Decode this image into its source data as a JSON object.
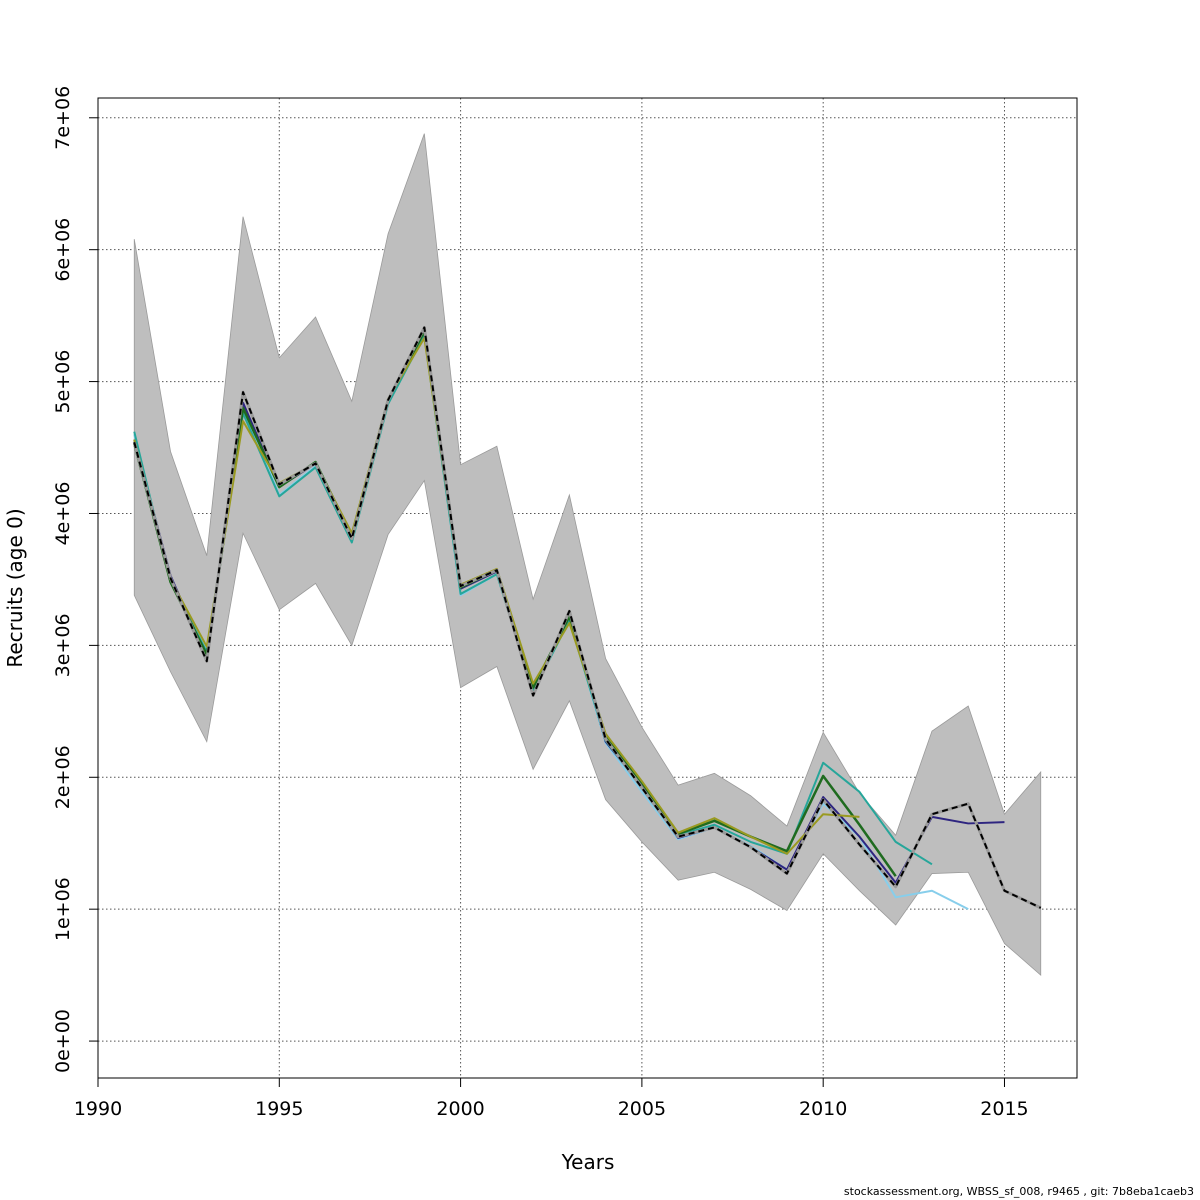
{
  "chart_data": {
    "type": "line",
    "title": "",
    "xlabel": "Years",
    "ylabel": "Recruits (age 0)",
    "xlim": [
      1990,
      2017
    ],
    "ylim": [
      -280000,
      7150000
    ],
    "x_ticks": [
      1990,
      1995,
      2000,
      2005,
      2010,
      2015
    ],
    "x_tick_labels": [
      "1990",
      "1995",
      "2000",
      "2005",
      "2010",
      "2015"
    ],
    "y_ticks": [
      0,
      1000000,
      2000000,
      3000000,
      4000000,
      5000000,
      6000000,
      7000000
    ],
    "y_tick_labels": [
      "0e+00",
      "1e+06",
      "2e+06",
      "3e+06",
      "4e+06",
      "5e+06",
      "6e+06",
      "7e+06"
    ],
    "grid": true,
    "band": {
      "color": "#bebebe",
      "x": [
        1991,
        1992,
        1993,
        1994,
        1995,
        1996,
        1997,
        1998,
        1999,
        2000,
        2001,
        2002,
        2003,
        2004,
        2005,
        2006,
        2007,
        2008,
        2009,
        2010,
        2011,
        2012,
        2013,
        2014,
        2015,
        2016
      ],
      "lower": [
        3380000,
        2800000,
        2270000,
        3850000,
        3270000,
        3470000,
        3000000,
        3840000,
        4250000,
        2680000,
        2840000,
        2060000,
        2580000,
        1830000,
        1510000,
        1220000,
        1280000,
        1150000,
        990000,
        1420000,
        1140000,
        880000,
        1270000,
        1280000,
        740000,
        500000
      ],
      "upper": [
        6080000,
        4470000,
        3680000,
        6250000,
        5180000,
        5490000,
        4850000,
        6120000,
        6880000,
        4370000,
        4510000,
        3350000,
        4140000,
        2900000,
        2380000,
        1940000,
        2030000,
        1860000,
        1630000,
        2340000,
        1880000,
        1560000,
        2350000,
        2540000,
        1720000,
        2040000
      ]
    },
    "series": [
      {
        "color": "#87ceeb",
        "width": 2,
        "dashed": false,
        "x": [
          1991,
          1992,
          1993,
          1994,
          1995,
          1996,
          1997,
          1998,
          1999,
          2000,
          2001,
          2002,
          2003,
          2004,
          2005,
          2006,
          2007,
          2008,
          2009,
          2010,
          2011,
          2012,
          2013,
          2014
        ],
        "values": [
          4600000,
          3480000,
          2960000,
          4800000,
          4140000,
          4360000,
          3800000,
          4840000,
          5360000,
          3380000,
          3540000,
          2660000,
          3200000,
          2260000,
          1890000,
          1530000,
          1620000,
          1480000,
          1300000,
          1800000,
          1550000,
          1090000,
          1140000,
          1000000
        ]
      },
      {
        "color": "#2e2580",
        "width": 2,
        "dashed": false,
        "x": [
          1991,
          1992,
          1993,
          1994,
          1995,
          1996,
          1997,
          1998,
          1999,
          2000,
          2001,
          2002,
          2003,
          2004,
          2005,
          2006,
          2007,
          2008,
          2009,
          2010,
          2011,
          2012,
          2013,
          2014,
          2015
        ],
        "values": [
          4560000,
          3530000,
          2900000,
          4840000,
          4200000,
          4380000,
          3820000,
          4860000,
          5390000,
          3430000,
          3560000,
          2630000,
          3240000,
          2270000,
          1930000,
          1540000,
          1620000,
          1470000,
          1300000,
          1850000,
          1550000,
          1200000,
          1700000,
          1650000,
          1660000
        ]
      },
      {
        "color": "#26a69a",
        "width": 2,
        "dashed": false,
        "x": [
          1991,
          1992,
          1993,
          1994,
          1995,
          1996,
          1997,
          1998,
          1999,
          2000,
          2001,
          2002,
          2003,
          2004,
          2005,
          2006,
          2007,
          2008,
          2009,
          2010,
          2011,
          2012,
          2013
        ],
        "values": [
          4620000,
          3480000,
          2950000,
          4760000,
          4130000,
          4350000,
          3780000,
          4830000,
          5350000,
          3390000,
          3540000,
          2650000,
          3190000,
          2280000,
          1920000,
          1560000,
          1640000,
          1510000,
          1420000,
          2110000,
          1890000,
          1510000,
          1340000
        ]
      },
      {
        "color": "#1f6b1f",
        "width": 2.5,
        "dashed": false,
        "x": [
          1991,
          1992,
          1993,
          1994,
          1995,
          1996,
          1997,
          1998,
          1999,
          2000,
          2001,
          2002,
          2003,
          2004,
          2005,
          2006,
          2007,
          2008,
          2009,
          2010,
          2011,
          2012
        ],
        "values": [
          4530000,
          3480000,
          2930000,
          4800000,
          4200000,
          4390000,
          3830000,
          4860000,
          5380000,
          3440000,
          3570000,
          2680000,
          3220000,
          2310000,
          1960000,
          1570000,
          1670000,
          1550000,
          1440000,
          2010000,
          1640000,
          1250000
        ]
      },
      {
        "color": "#9a9a20",
        "width": 2,
        "dashed": false,
        "x": [
          1991,
          1992,
          1993,
          1994,
          1995,
          1996,
          1997,
          1998,
          1999,
          2000,
          2001,
          2002,
          2003,
          2004,
          2005,
          2006,
          2007,
          2008,
          2009,
          2010,
          2011
        ],
        "values": [
          4560000,
          3500000,
          2990000,
          4700000,
          4230000,
          4380000,
          3850000,
          4870000,
          5330000,
          3460000,
          3580000,
          2710000,
          3170000,
          2330000,
          1970000,
          1580000,
          1690000,
          1550000,
          1420000,
          1720000,
          1700000
        ]
      },
      {
        "color": "#000000",
        "width": 2,
        "dashed": true,
        "x": [
          1991,
          1992,
          1993,
          1994,
          1995,
          1996,
          1997,
          1998,
          1999,
          2000,
          2001,
          2002,
          2003,
          2004,
          2005,
          2006,
          2007,
          2008,
          2009,
          2010,
          2011,
          2012,
          2013,
          2014,
          2015,
          2016
        ],
        "values": [
          4540000,
          3510000,
          2880000,
          4920000,
          4220000,
          4380000,
          3810000,
          4860000,
          5410000,
          3450000,
          3570000,
          2620000,
          3260000,
          2290000,
          1920000,
          1550000,
          1620000,
          1470000,
          1270000,
          1830000,
          1490000,
          1170000,
          1720000,
          1800000,
          1140000,
          1010000
        ]
      }
    ]
  },
  "footer": "stockassessment.org, WBSS_sf_008, r9465 , git: 7b8eba1caeb3"
}
